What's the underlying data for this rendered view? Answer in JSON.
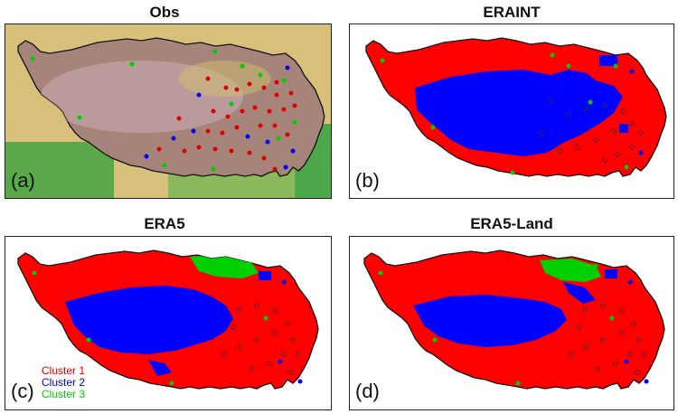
{
  "panels": [
    {
      "title": "Obs",
      "label": "(a)"
    },
    {
      "title": "ERAINT",
      "label": "(b)"
    },
    {
      "title": "ERA5",
      "label": "(c)"
    },
    {
      "title": "ERA5-Land",
      "label": "(d)"
    }
  ],
  "legend": [
    {
      "text": "Cluster 1",
      "color": "#e00000"
    },
    {
      "text": "Cluster 2",
      "color": "#0000dd"
    },
    {
      "text": "Cluster 3",
      "color": "#00cc00"
    }
  ],
  "colors": {
    "cluster1": "#ff0000",
    "cluster2": "#0000ff",
    "cluster3": "#00d000"
  }
}
